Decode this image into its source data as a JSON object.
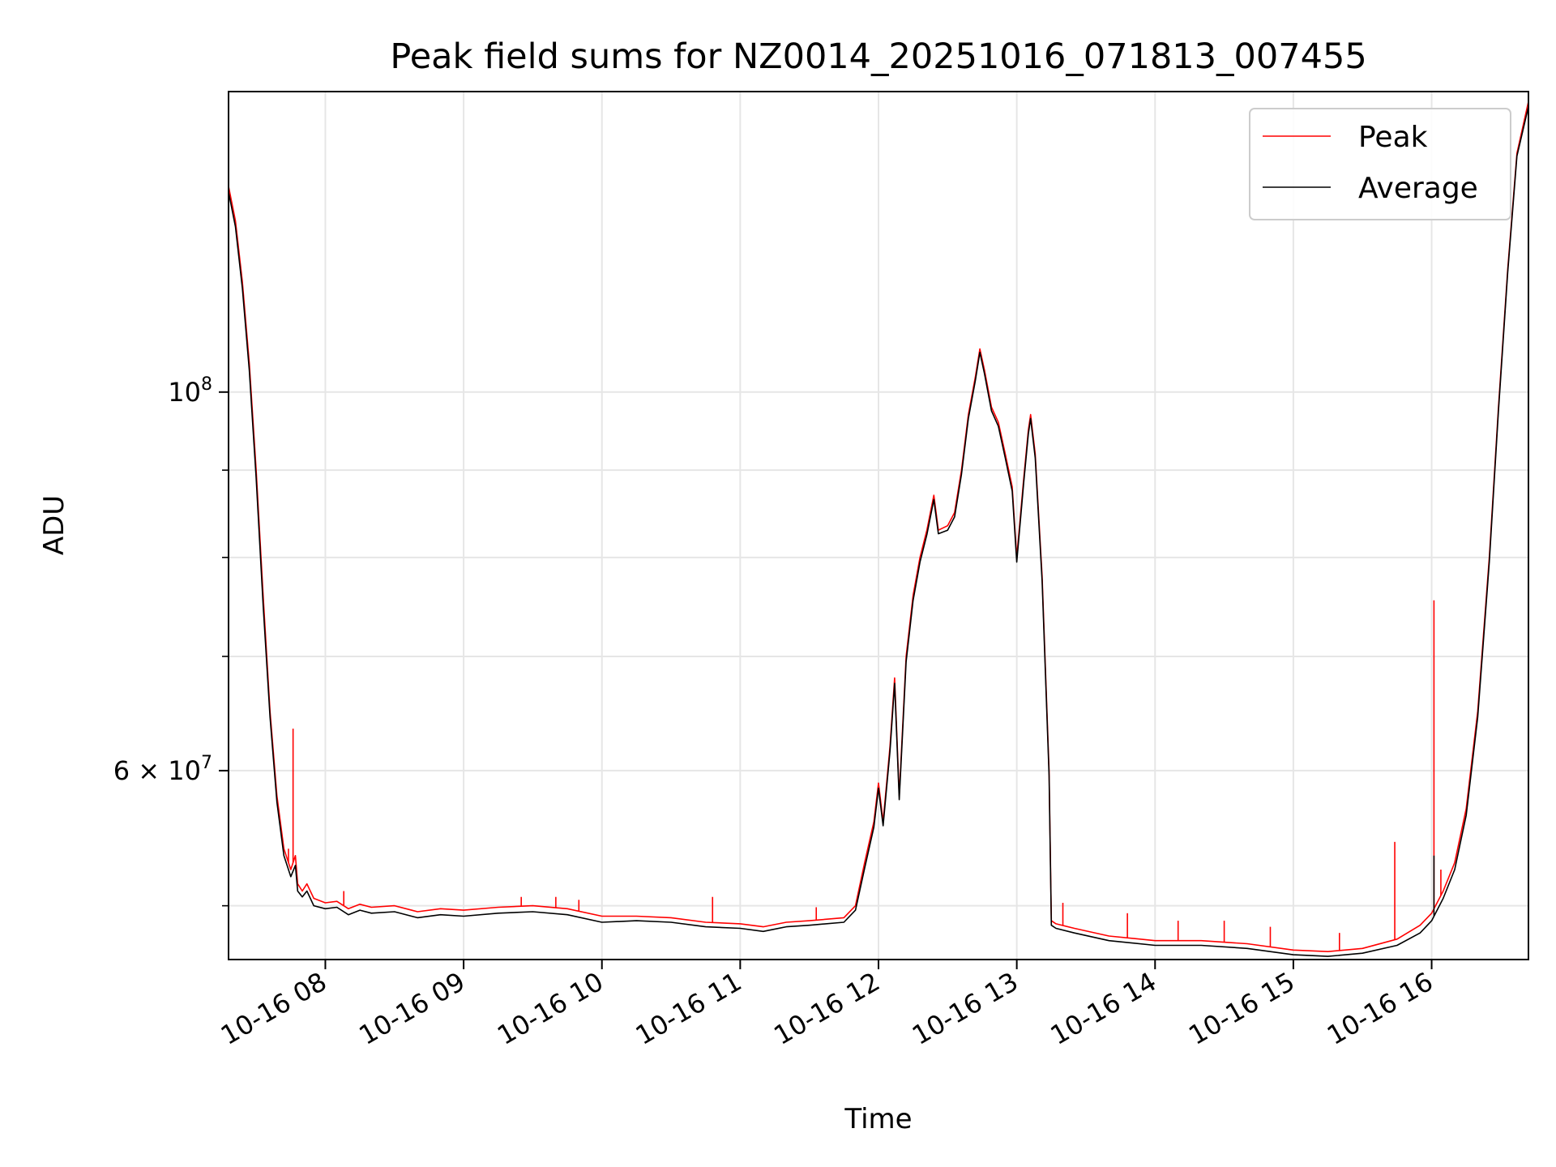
{
  "chart_data": {
    "type": "line",
    "title": "Peak field sums for NZ0014_20251016_071813_007455",
    "xlabel": "Time",
    "ylabel": "ADU",
    "y_scale": "log",
    "xlim": [
      "2025-10-16 07:18",
      "2025-10-16 16:42"
    ],
    "ylim": [
      46500000,
      150000000
    ],
    "x_ticks": [
      {
        "value": "2025-10-16 08:00",
        "label": "10-16 08"
      },
      {
        "value": "2025-10-16 09:00",
        "label": "10-16 09"
      },
      {
        "value": "2025-10-16 10:00",
        "label": "10-16 10"
      },
      {
        "value": "2025-10-16 11:00",
        "label": "10-16 11"
      },
      {
        "value": "2025-10-16 12:00",
        "label": "10-16 12"
      },
      {
        "value": "2025-10-16 13:00",
        "label": "10-16 13"
      },
      {
        "value": "2025-10-16 14:00",
        "label": "10-16 14"
      },
      {
        "value": "2025-10-16 15:00",
        "label": "10-16 15"
      },
      {
        "value": "2025-10-16 16:00",
        "label": "10-16 16"
      }
    ],
    "y_major_ticks": [
      {
        "value": 100000000,
        "base": "10",
        "exp": "8"
      },
      {
        "value": 60000000,
        "base": "6 × 10",
        "exp": "7"
      }
    ],
    "y_minor_ticks": [
      50000000,
      70000000,
      80000000,
      90000000
    ],
    "grid": true,
    "legend_position": "top-right",
    "series": [
      {
        "name": "Peak",
        "color": "#ff0000",
        "points": [
          [
            "2025-10-16 07:18",
            132000000
          ],
          [
            "2025-10-16 07:21",
            126000000
          ],
          [
            "2025-10-16 07:24",
            116000000
          ],
          [
            "2025-10-16 07:27",
            104000000
          ],
          [
            "2025-10-16 07:30",
            90000000
          ],
          [
            "2025-10-16 07:33",
            76000000
          ],
          [
            "2025-10-16 07:36",
            65000000
          ],
          [
            "2025-10-16 07:39",
            58000000
          ],
          [
            "2025-10-16 07:42",
            54000000
          ],
          [
            "2025-10-16 07:45",
            52500000
          ],
          [
            "2025-10-16 07:47",
            53500000
          ],
          [
            "2025-10-16 07:48",
            51500000
          ],
          [
            "2025-10-16 07:50",
            51000000
          ],
          [
            "2025-10-16 07:52",
            51500000
          ],
          [
            "2025-10-16 07:55",
            50500000
          ],
          [
            "2025-10-16 08:00",
            50200000
          ],
          [
            "2025-10-16 08:05",
            50300000
          ],
          [
            "2025-10-16 08:10",
            49800000
          ],
          [
            "2025-10-16 08:15",
            50100000
          ],
          [
            "2025-10-16 08:20",
            49900000
          ],
          [
            "2025-10-16 08:30",
            50000000
          ],
          [
            "2025-10-16 08:40",
            49600000
          ],
          [
            "2025-10-16 08:50",
            49800000
          ],
          [
            "2025-10-16 09:00",
            49700000
          ],
          [
            "2025-10-16 09:15",
            49900000
          ],
          [
            "2025-10-16 09:30",
            50000000
          ],
          [
            "2025-10-16 09:45",
            49800000
          ],
          [
            "2025-10-16 10:00",
            49300000
          ],
          [
            "2025-10-16 10:15",
            49300000
          ],
          [
            "2025-10-16 10:30",
            49200000
          ],
          [
            "2025-10-16 10:45",
            48900000
          ],
          [
            "2025-10-16 11:00",
            48800000
          ],
          [
            "2025-10-16 11:10",
            48600000
          ],
          [
            "2025-10-16 11:20",
            48900000
          ],
          [
            "2025-10-16 11:30",
            49000000
          ],
          [
            "2025-10-16 11:45",
            49200000
          ],
          [
            "2025-10-16 11:50",
            50000000
          ],
          [
            "2025-10-16 11:54",
            53000000
          ],
          [
            "2025-10-16 11:58",
            56000000
          ],
          [
            "2025-10-16 12:00",
            59000000
          ],
          [
            "2025-10-16 12:02",
            56000000
          ],
          [
            "2025-10-16 12:05",
            62000000
          ],
          [
            "2025-10-16 12:07",
            68000000
          ],
          [
            "2025-10-16 12:09",
            58000000
          ],
          [
            "2025-10-16 12:12",
            70000000
          ],
          [
            "2025-10-16 12:15",
            76000000
          ],
          [
            "2025-10-16 12:18",
            80000000
          ],
          [
            "2025-10-16 12:21",
            83000000
          ],
          [
            "2025-10-16 12:24",
            87000000
          ],
          [
            "2025-10-16 12:26",
            83000000
          ],
          [
            "2025-10-16 12:30",
            83500000
          ],
          [
            "2025-10-16 12:33",
            85000000
          ],
          [
            "2025-10-16 12:36",
            90000000
          ],
          [
            "2025-10-16 12:39",
            97000000
          ],
          [
            "2025-10-16 12:42",
            102000000
          ],
          [
            "2025-10-16 12:44",
            106000000
          ],
          [
            "2025-10-16 12:46",
            103000000
          ],
          [
            "2025-10-16 12:49",
            98000000
          ],
          [
            "2025-10-16 12:52",
            96000000
          ],
          [
            "2025-10-16 12:55",
            92000000
          ],
          [
            "2025-10-16 12:58",
            88000000
          ],
          [
            "2025-10-16 13:00",
            80000000
          ],
          [
            "2025-10-16 13:03",
            89000000
          ],
          [
            "2025-10-16 13:05",
            95000000
          ],
          [
            "2025-10-16 13:06",
            97000000
          ],
          [
            "2025-10-16 13:08",
            92000000
          ],
          [
            "2025-10-16 13:11",
            78000000
          ],
          [
            "2025-10-16 13:14",
            60000000
          ],
          [
            "2025-10-16 13:15",
            49000000
          ],
          [
            "2025-10-16 13:17",
            48800000
          ],
          [
            "2025-10-16 13:25",
            48500000
          ],
          [
            "2025-10-16 13:40",
            48000000
          ],
          [
            "2025-10-16 14:00",
            47700000
          ],
          [
            "2025-10-16 14:20",
            47700000
          ],
          [
            "2025-10-16 14:40",
            47500000
          ],
          [
            "2025-10-16 15:00",
            47100000
          ],
          [
            "2025-10-16 15:15",
            47000000
          ],
          [
            "2025-10-16 15:30",
            47200000
          ],
          [
            "2025-10-16 15:45",
            47800000
          ],
          [
            "2025-10-16 15:55",
            48700000
          ],
          [
            "2025-10-16 16:00",
            49500000
          ],
          [
            "2025-10-16 16:05",
            51000000
          ],
          [
            "2025-10-16 16:10",
            53000000
          ],
          [
            "2025-10-16 16:15",
            57000000
          ],
          [
            "2025-10-16 16:20",
            65000000
          ],
          [
            "2025-10-16 16:25",
            80000000
          ],
          [
            "2025-10-16 16:29",
            98000000
          ],
          [
            "2025-10-16 16:33",
            118000000
          ],
          [
            "2025-10-16 16:37",
            138000000
          ],
          [
            "2025-10-16 16:42",
            148000000
          ]
        ],
        "spikes": [
          [
            "2025-10-16 07:46",
            63500000
          ],
          [
            "2025-10-16 07:44",
            54000000
          ],
          [
            "2025-10-16 08:08",
            51000000
          ],
          [
            "2025-10-16 09:25",
            50600000
          ],
          [
            "2025-10-16 09:40",
            50600000
          ],
          [
            "2025-10-16 09:50",
            50400000
          ],
          [
            "2025-10-16 10:48",
            50600000
          ],
          [
            "2025-10-16 11:33",
            49900000
          ],
          [
            "2025-10-16 13:20",
            50200000
          ],
          [
            "2025-10-16 13:48",
            49500000
          ],
          [
            "2025-10-16 14:10",
            49000000
          ],
          [
            "2025-10-16 14:30",
            49000000
          ],
          [
            "2025-10-16 14:50",
            48600000
          ],
          [
            "2025-10-16 15:20",
            48200000
          ],
          [
            "2025-10-16 15:44",
            54500000
          ],
          [
            "2025-10-16 16:01",
            75500000
          ],
          [
            "2025-10-16 16:04",
            52500000
          ]
        ]
      },
      {
        "name": "Average",
        "color": "#000000",
        "points": [
          [
            "2025-10-16 07:18",
            131000000
          ],
          [
            "2025-10-16 07:21",
            125000000
          ],
          [
            "2025-10-16 07:24",
            115000000
          ],
          [
            "2025-10-16 07:27",
            103000000
          ],
          [
            "2025-10-16 07:30",
            89000000
          ],
          [
            "2025-10-16 07:33",
            75000000
          ],
          [
            "2025-10-16 07:36",
            64500000
          ],
          [
            "2025-10-16 07:39",
            57500000
          ],
          [
            "2025-10-16 07:42",
            53500000
          ],
          [
            "2025-10-16 07:45",
            52000000
          ],
          [
            "2025-10-16 07:47",
            52800000
          ],
          [
            "2025-10-16 07:48",
            51000000
          ],
          [
            "2025-10-16 07:50",
            50600000
          ],
          [
            "2025-10-16 07:52",
            51000000
          ],
          [
            "2025-10-16 07:55",
            50000000
          ],
          [
            "2025-10-16 08:00",
            49800000
          ],
          [
            "2025-10-16 08:05",
            49900000
          ],
          [
            "2025-10-16 08:10",
            49400000
          ],
          [
            "2025-10-16 08:15",
            49700000
          ],
          [
            "2025-10-16 08:20",
            49500000
          ],
          [
            "2025-10-16 08:30",
            49600000
          ],
          [
            "2025-10-16 08:40",
            49200000
          ],
          [
            "2025-10-16 08:50",
            49400000
          ],
          [
            "2025-10-16 09:00",
            49300000
          ],
          [
            "2025-10-16 09:15",
            49500000
          ],
          [
            "2025-10-16 09:30",
            49600000
          ],
          [
            "2025-10-16 09:45",
            49400000
          ],
          [
            "2025-10-16 10:00",
            48900000
          ],
          [
            "2025-10-16 10:15",
            49000000
          ],
          [
            "2025-10-16 10:30",
            48900000
          ],
          [
            "2025-10-16 10:45",
            48600000
          ],
          [
            "2025-10-16 11:00",
            48500000
          ],
          [
            "2025-10-16 11:10",
            48300000
          ],
          [
            "2025-10-16 11:20",
            48600000
          ],
          [
            "2025-10-16 11:30",
            48700000
          ],
          [
            "2025-10-16 11:45",
            48900000
          ],
          [
            "2025-10-16 11:50",
            49700000
          ],
          [
            "2025-10-16 11:54",
            52600000
          ],
          [
            "2025-10-16 11:58",
            55600000
          ],
          [
            "2025-10-16 12:00",
            58600000
          ],
          [
            "2025-10-16 12:02",
            55700000
          ],
          [
            "2025-10-16 12:05",
            61600000
          ],
          [
            "2025-10-16 12:07",
            67500000
          ],
          [
            "2025-10-16 12:09",
            57700000
          ],
          [
            "2025-10-16 12:12",
            69500000
          ],
          [
            "2025-10-16 12:15",
            75500000
          ],
          [
            "2025-10-16 12:18",
            79500000
          ],
          [
            "2025-10-16 12:21",
            82500000
          ],
          [
            "2025-10-16 12:24",
            86500000
          ],
          [
            "2025-10-16 12:26",
            82600000
          ],
          [
            "2025-10-16 12:30",
            83000000
          ],
          [
            "2025-10-16 12:33",
            84500000
          ],
          [
            "2025-10-16 12:36",
            89500000
          ],
          [
            "2025-10-16 12:39",
            96500000
          ],
          [
            "2025-10-16 12:42",
            101500000
          ],
          [
            "2025-10-16 12:44",
            105500000
          ],
          [
            "2025-10-16 12:46",
            102500000
          ],
          [
            "2025-10-16 12:49",
            97500000
          ],
          [
            "2025-10-16 12:52",
            95500000
          ],
          [
            "2025-10-16 12:55",
            91500000
          ],
          [
            "2025-10-16 12:58",
            87500000
          ],
          [
            "2025-10-16 13:00",
            79500000
          ],
          [
            "2025-10-16 13:03",
            88500000
          ],
          [
            "2025-10-16 13:05",
            94500000
          ],
          [
            "2025-10-16 13:06",
            96500000
          ],
          [
            "2025-10-16 13:08",
            91500000
          ],
          [
            "2025-10-16 13:11",
            77500000
          ],
          [
            "2025-10-16 13:14",
            59600000
          ],
          [
            "2025-10-16 13:15",
            48700000
          ],
          [
            "2025-10-16 13:17",
            48500000
          ],
          [
            "2025-10-16 13:25",
            48200000
          ],
          [
            "2025-10-16 13:40",
            47700000
          ],
          [
            "2025-10-16 14:00",
            47400000
          ],
          [
            "2025-10-16 14:20",
            47400000
          ],
          [
            "2025-10-16 14:40",
            47200000
          ],
          [
            "2025-10-16 15:00",
            46800000
          ],
          [
            "2025-10-16 15:15",
            46700000
          ],
          [
            "2025-10-16 15:30",
            46900000
          ],
          [
            "2025-10-16 15:45",
            47400000
          ],
          [
            "2025-10-16 15:55",
            48200000
          ],
          [
            "2025-10-16 16:00",
            49000000
          ],
          [
            "2025-10-16 16:05",
            50500000
          ],
          [
            "2025-10-16 16:10",
            52500000
          ],
          [
            "2025-10-16 16:15",
            56500000
          ],
          [
            "2025-10-16 16:20",
            64500000
          ],
          [
            "2025-10-16 16:25",
            79500000
          ],
          [
            "2025-10-16 16:29",
            97500000
          ],
          [
            "2025-10-16 16:33",
            117500000
          ],
          [
            "2025-10-16 16:37",
            137500000
          ],
          [
            "2025-10-16 16:42",
            147000000
          ]
        ],
        "spikes": [
          [
            "2025-10-16 16:01",
            53500000
          ]
        ]
      }
    ]
  }
}
